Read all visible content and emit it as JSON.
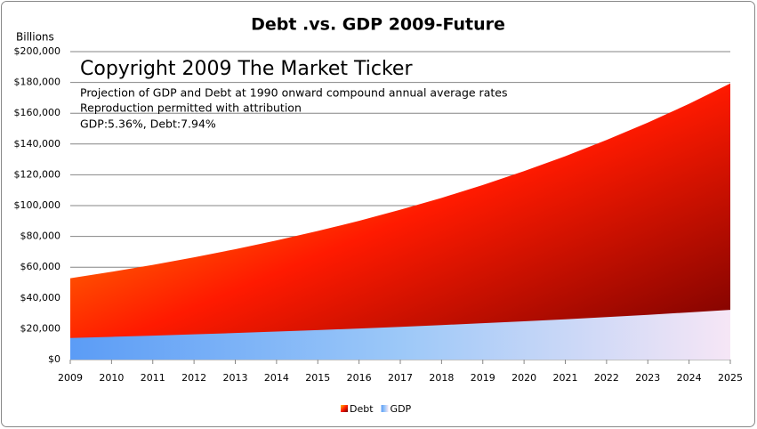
{
  "chart_data": {
    "type": "area",
    "title": "Debt .vs. GDP 2009-Future",
    "y_label": "Billions",
    "annotations": [
      "Copyright 2009 The Market Ticker",
      "Projection of GDP and Debt at 1990  onward compound annual average rates",
      "Reproduction permitted with attribution",
      "GDP:5.36%, Debt:7.94%"
    ],
    "x": [
      2009,
      2010,
      2011,
      2012,
      2013,
      2014,
      2015,
      2016,
      2017,
      2018,
      2019,
      2020,
      2021,
      2022,
      2023,
      2024,
      2025
    ],
    "xlim": [
      2009,
      2025
    ],
    "xticks": [
      2009,
      2010,
      2011,
      2012,
      2013,
      2014,
      2015,
      2016,
      2017,
      2018,
      2019,
      2020,
      2021,
      2022,
      2023,
      2024,
      2025
    ],
    "series": [
      {
        "name": "Debt",
        "color": "#ff2000",
        "gradient": [
          "#ffc000",
          "#ff1a00",
          "#6e0000"
        ],
        "values": [
          52800,
          57000,
          61500,
          66400,
          71700,
          77400,
          83500,
          90100,
          97300,
          105000,
          113400,
          122400,
          132100,
          142600,
          153900,
          166100,
          179300
        ]
      },
      {
        "name": "GDP",
        "color": "#9fc4f5",
        "gradient": [
          "#5b9cf6",
          "#9cc8f8",
          "#f6e6f6"
        ],
        "values": [
          14000,
          14750,
          15540,
          16370,
          17250,
          18180,
          19150,
          20180,
          21260,
          22400,
          23600,
          24860,
          26190,
          27600,
          29080,
          30640,
          32280
        ]
      }
    ],
    "ylim": [
      0,
      200000
    ],
    "yticks": [
      {
        "value": 0,
        "label": "$0"
      },
      {
        "value": 20000,
        "label": "$20,000"
      },
      {
        "value": 40000,
        "label": "$40,000"
      },
      {
        "value": 60000,
        "label": "$60,000"
      },
      {
        "value": 80000,
        "label": "$80,000"
      },
      {
        "value": 100000,
        "label": "$100,000"
      },
      {
        "value": 120000,
        "label": "$120,000"
      },
      {
        "value": 140000,
        "label": "$140,000"
      },
      {
        "value": 160000,
        "label": "$160,000"
      },
      {
        "value": 180000,
        "label": "$180,000"
      },
      {
        "value": 200000,
        "label": "$200,000"
      }
    ],
    "grid": true,
    "legend": "bottom"
  }
}
